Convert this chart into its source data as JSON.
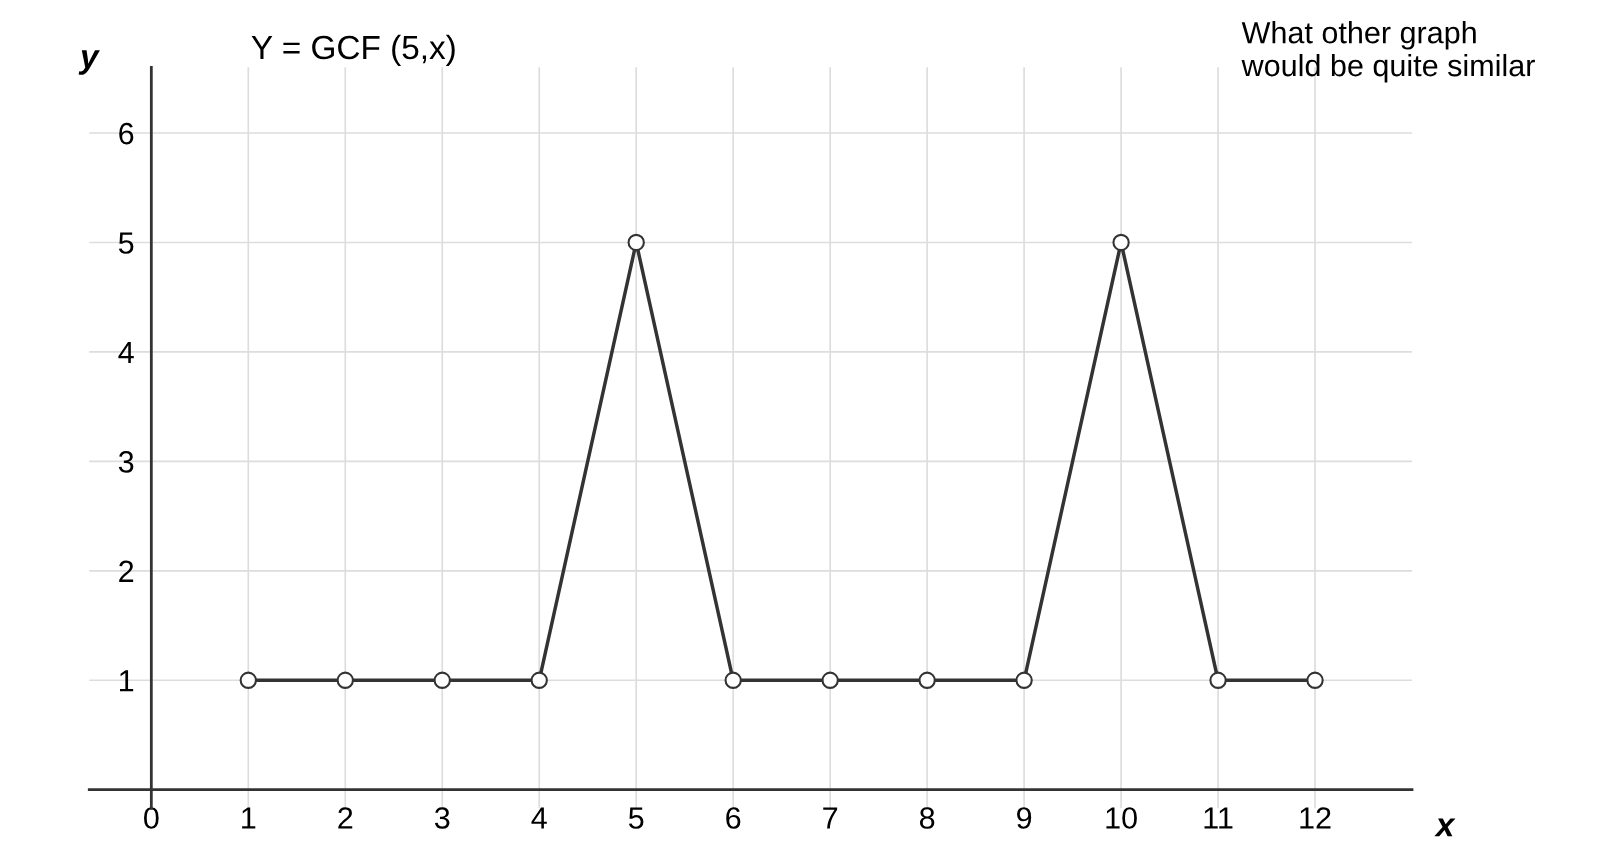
{
  "chart_data": {
    "type": "line",
    "title": "Y = GCF (5,x)",
    "xlabel": "x",
    "ylabel": "y",
    "annotations": [
      "What other graph\nwould be quite similar"
    ],
    "x": [
      1,
      2,
      3,
      4,
      5,
      6,
      7,
      8,
      9,
      10,
      11,
      12
    ],
    "series": [
      {
        "color": "#333333",
        "values": [
          1,
          1,
          1,
          1,
          5,
          1,
          1,
          1,
          1,
          5,
          1,
          1
        ]
      }
    ],
    "xlim": [
      -0.64,
      13
    ],
    "ylim": [
      -0.17,
      6.6
    ],
    "xticks": [
      0,
      1,
      2,
      3,
      4,
      5,
      6,
      7,
      8,
      9,
      10,
      11,
      12
    ],
    "yticks": [
      1,
      2,
      3,
      4,
      5,
      6
    ],
    "grid": true,
    "marker": "circle",
    "line_style": "solid",
    "legend": false
  }
}
